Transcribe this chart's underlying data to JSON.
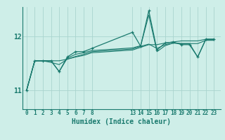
{
  "title": "",
  "xlabel": "Humidex (Indice chaleur)",
  "bg_color": "#ceeee8",
  "grid_color": "#aad4ce",
  "line_color": "#1a7a6e",
  "xtick_vals": [
    0,
    1,
    2,
    3,
    4,
    5,
    6,
    7,
    8,
    13,
    14,
    15,
    16,
    17,
    18,
    19,
    20,
    21,
    22,
    23
  ],
  "ytick_vals": [
    11,
    12
  ],
  "ylim": [
    10.65,
    12.55
  ],
  "xlim": [
    -0.5,
    23.8
  ],
  "series_main": [
    [
      0,
      11.0
    ],
    [
      1,
      11.55
    ],
    [
      2,
      11.55
    ],
    [
      3,
      11.55
    ],
    [
      4,
      11.35
    ],
    [
      5,
      11.62
    ],
    [
      6,
      11.72
    ],
    [
      7,
      11.72
    ],
    [
      8,
      11.78
    ],
    [
      13,
      12.08
    ],
    [
      14,
      11.82
    ],
    [
      15,
      12.48
    ],
    [
      16,
      11.75
    ],
    [
      17,
      11.88
    ],
    [
      18,
      11.9
    ],
    [
      19,
      11.85
    ],
    [
      20,
      11.85
    ],
    [
      21,
      11.62
    ],
    [
      22,
      11.95
    ],
    [
      23,
      11.95
    ]
  ],
  "series_b": [
    [
      0,
      11.0
    ],
    [
      1,
      11.55
    ],
    [
      2,
      11.55
    ],
    [
      3,
      11.55
    ],
    [
      4,
      11.55
    ],
    [
      5,
      11.58
    ],
    [
      6,
      11.62
    ],
    [
      7,
      11.65
    ],
    [
      8,
      11.7
    ],
    [
      13,
      11.75
    ],
    [
      14,
      11.8
    ],
    [
      15,
      11.85
    ],
    [
      16,
      11.85
    ],
    [
      17,
      11.88
    ],
    [
      18,
      11.9
    ],
    [
      19,
      11.92
    ],
    [
      20,
      11.92
    ],
    [
      21,
      11.92
    ],
    [
      22,
      11.95
    ],
    [
      23,
      11.95
    ]
  ],
  "series_c": [
    [
      0,
      11.0
    ],
    [
      1,
      11.55
    ],
    [
      2,
      11.55
    ],
    [
      3,
      11.52
    ],
    [
      4,
      11.48
    ],
    [
      5,
      11.58
    ],
    [
      6,
      11.63
    ],
    [
      7,
      11.67
    ],
    [
      8,
      11.72
    ],
    [
      13,
      11.77
    ],
    [
      14,
      11.82
    ],
    [
      15,
      11.86
    ],
    [
      16,
      11.78
    ],
    [
      17,
      11.85
    ],
    [
      18,
      11.88
    ],
    [
      19,
      11.87
    ],
    [
      20,
      11.87
    ],
    [
      21,
      11.87
    ],
    [
      22,
      11.93
    ],
    [
      23,
      11.93
    ]
  ],
  "series_d": [
    [
      0,
      11.0
    ],
    [
      1,
      11.55
    ],
    [
      2,
      11.55
    ],
    [
      3,
      11.55
    ],
    [
      4,
      11.35
    ],
    [
      5,
      11.6
    ],
    [
      6,
      11.67
    ],
    [
      7,
      11.7
    ],
    [
      8,
      11.74
    ],
    [
      13,
      11.79
    ],
    [
      14,
      11.83
    ],
    [
      15,
      12.4
    ],
    [
      16,
      11.72
    ],
    [
      17,
      11.83
    ],
    [
      18,
      11.88
    ],
    [
      19,
      11.87
    ],
    [
      20,
      11.87
    ],
    [
      21,
      11.62
    ],
    [
      22,
      11.95
    ],
    [
      23,
      11.95
    ]
  ]
}
